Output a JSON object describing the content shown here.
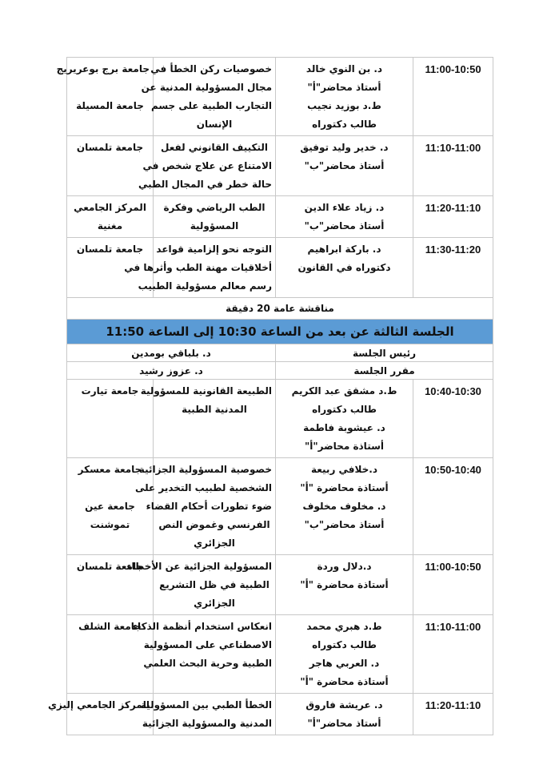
{
  "columns_note": "",
  "session_part1_rows": [
    {
      "time": "11:00-10:50",
      "speakers": [
        "د. بن النوي خالد",
        "أستاذ محاضر\"أ\"",
        "ط.د بوزيد نجيب",
        "طالب دكتوراه"
      ],
      "topic": [
        "خصوصيات ركن الخطأ في",
        "مجال المسؤولية المدنية عن",
        "التجارب الطبية على جسم",
        "الإنسان"
      ],
      "university": [
        "جامعة برج بوعريريج",
        "",
        "جامعة المسيلة"
      ]
    },
    {
      "time": "11:10-11:00",
      "speakers": [
        "د. خدير وليد توفيق",
        "أستاذ محاضر\"ب\""
      ],
      "topic": [
        "التكييف القانوني لفعل",
        "الامتناع عن علاج شخص في",
        "حالة خطر في المجال الطبي"
      ],
      "university": [
        "جامعة تلمسان"
      ]
    },
    {
      "time": "11:20-11:10",
      "speakers": [
        "د. زياد علاء الدين",
        "أستاذ محاضر\"ب\""
      ],
      "topic": [
        "الطب الرياضي وفكرة",
        "المسؤولية"
      ],
      "university": [
        "المركز الجامعي",
        "مغنية"
      ]
    },
    {
      "time": "11:30-11:20",
      "speakers": [
        "د. باركة ابراهيم",
        "دكتوراه في القانون"
      ],
      "topic": [
        "التوجه نحو إلزامية قواعد",
        "أخلاقيات مهنة الطب وأثرها في",
        "رسم معالم مسؤولية الطبيب"
      ],
      "university": [
        "جامعة تلمسان"
      ]
    }
  ],
  "discussion": "مناقشة عامة 20 دقيقة",
  "session3": {
    "title": "الجلسة الثالثة عن بعد من الساعة 10:30 إلى الساعة 11:50",
    "header_color": "#5b9bd5",
    "chair_label": "رئيس الجلسة",
    "chair_name": "د. بلباقي بومدين",
    "rapporteur_label": "مقرر الجلسة",
    "rapporteur_name": "د. عزوز رشيد"
  },
  "session3_rows": [
    {
      "time": "10:40-10:30",
      "speakers": [
        "ط.د مشقق عبد الكريم",
        "طالب دكتوراه",
        "د. عيشوبة فاطمة",
        "أستاذة محاضر\"أ\""
      ],
      "topic": [
        "الطبيعة القانونية للمسؤولية",
        "المدنية الطبية"
      ],
      "university": [
        "جامعة تيارت"
      ]
    },
    {
      "time": "10:50-10:40",
      "speakers": [
        "د.خلافي ربيعة",
        "أستاذة محاضرة \"أ\"",
        "د. مخلوف مخلوف",
        "أستاذ محاضر\"ب\""
      ],
      "topic": [
        "خصوصية المسؤولية الجزائية",
        "الشخصية لطبيب التخدير على",
        "ضوء تطورات أحكام القضاء",
        "الفرنسي وغموض النص",
        "الجزائري"
      ],
      "university": [
        "جامعة معسكر",
        "",
        "جامعة عين",
        "تموشنت"
      ]
    },
    {
      "time": "11:00-10:50",
      "speakers": [
        "د.دلال وردة",
        "أستاذة محاضرة \"أ\""
      ],
      "topic": [
        "المسؤولية الجزائية عن الأخطاء",
        "الطبية في ظل التشريع",
        "الجزائري"
      ],
      "university": [
        "جامعة تلمسان"
      ]
    },
    {
      "time": "11:10-11:00",
      "speakers": [
        "ط.د هبري محمد",
        "طالب دكتوراه",
        "د. العربي هاجر",
        "أستاذة محاضرة \"أ\""
      ],
      "topic": [
        "انعكاس استخدام أنظمة الذكاء",
        "الاصطناعي على المسؤولية",
        "الطبية وحرية البحث العلمي"
      ],
      "university": [
        "جامعة الشلف"
      ]
    },
    {
      "time": "11:20-11:10",
      "speakers": [
        "د. عريشة فاروق",
        "أستاذ محاضر\"أ\""
      ],
      "topic": [
        "الخطأ الطبي بين المسؤولية",
        "المدنية والمسؤولية الجزائية"
      ],
      "university": [
        "المركز الجامعي إليزي"
      ]
    }
  ]
}
